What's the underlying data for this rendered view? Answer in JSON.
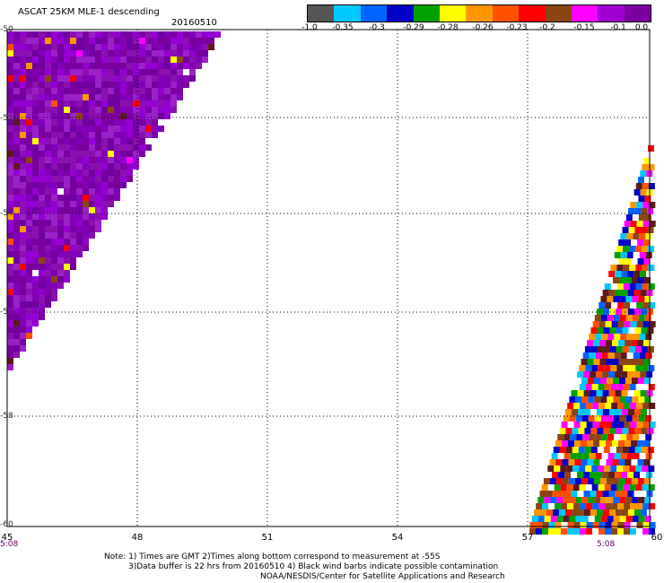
{
  "header": {
    "title": "ASCAT 25KM MLE-1 descending",
    "date": "20160510"
  },
  "colorbar": {
    "colors": [
      "#555555",
      "#00c8ff",
      "#0064ff",
      "#0000c8",
      "#00a000",
      "#ffff00",
      "#ff9600",
      "#ff5000",
      "#ff0000",
      "#8b4513",
      "#ff00ff",
      "#a000d0",
      "#7a00a0"
    ],
    "labels": [
      "-1.0",
      "-0.35",
      "-0.3",
      "-0.29",
      "-0.28",
      "-0.26",
      "-0.23",
      "-0.2",
      "-0.15",
      "-0.1",
      "0.0"
    ]
  },
  "map": {
    "lat_labels": [
      "-50",
      "-52",
      "-54",
      "-56",
      "-58",
      "-60"
    ],
    "lon_labels": [
      "45",
      "48",
      "51",
      "54",
      "57",
      "60"
    ],
    "time_left": "5:08",
    "time_right": "5:08"
  },
  "notes": {
    "line1": "Note: 1) Times are GMT 2)Times along bottom correspond to measurement at -55S",
    "line2": "3)Data buffer is 22 hrs from 20160510 4) Black wind barbs indicate possible contamination",
    "line3": "NOAA/NESDIS/Center for Satellite Applications and Research"
  }
}
